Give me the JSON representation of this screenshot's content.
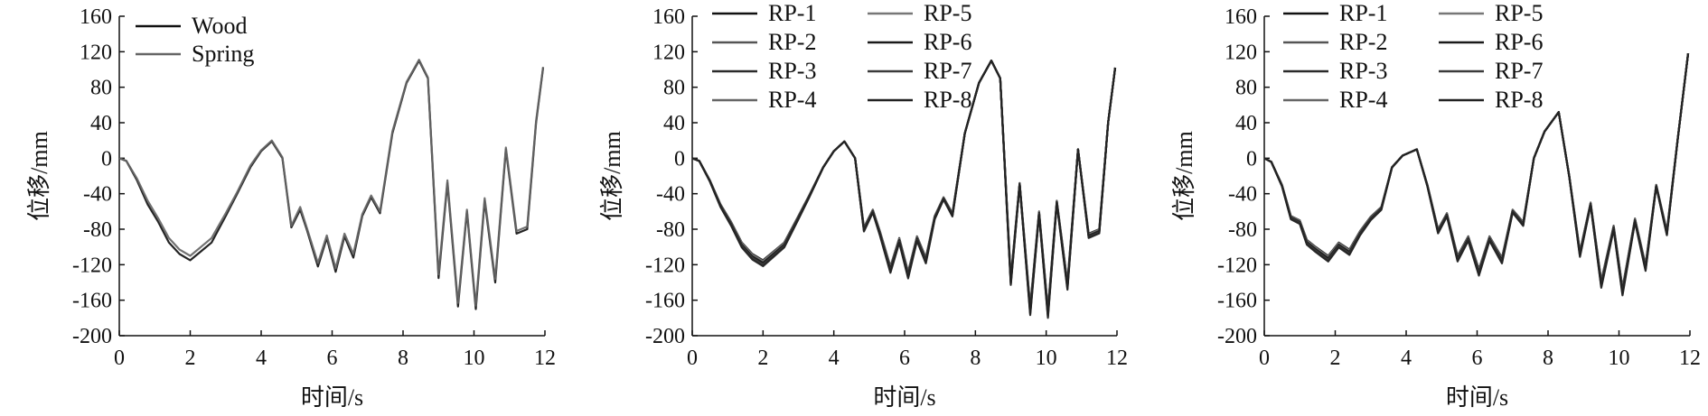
{
  "chart_data": [
    {
      "type": "line",
      "xlabel": "时间/s",
      "ylabel": "位移/mm",
      "xlim": [
        0,
        12
      ],
      "ylim": [
        -200,
        160
      ],
      "xticks": [
        0,
        2,
        4,
        6,
        8,
        10,
        12
      ],
      "yticks": [
        -200,
        -160,
        -120,
        -80,
        -40,
        0,
        40,
        80,
        120,
        160
      ],
      "grid": false,
      "legend": {
        "placement": "top-left",
        "columns": 1
      },
      "series": [
        {
          "name": "Wood",
          "color": "#111111",
          "x": [
            0,
            0.2,
            0.5,
            0.8,
            1.1,
            1.4,
            1.7,
            2.0,
            2.3,
            2.6,
            3.0,
            3.3,
            3.7,
            4.0,
            4.3,
            4.6,
            4.85,
            5.1,
            5.3,
            5.6,
            5.85,
            6.1,
            6.35,
            6.6,
            6.85,
            7.1,
            7.35,
            7.7,
            8.1,
            8.45,
            8.7,
            9.0,
            9.25,
            9.55,
            9.8,
            10.05,
            10.3,
            10.6,
            10.9,
            11.2,
            11.5,
            11.75,
            11.95
          ],
          "y": [
            0,
            -3,
            -25,
            -52,
            -72,
            -95,
            -108,
            -115,
            -105,
            -95,
            -65,
            -42,
            -10,
            8,
            19,
            0,
            -78,
            -58,
            -82,
            -122,
            -90,
            -128,
            -88,
            -112,
            -65,
            -44,
            -62,
            28,
            85,
            110,
            90,
            -135,
            -28,
            -167,
            -60,
            -170,
            -48,
            -140,
            10,
            -85,
            -80,
            40,
            102
          ]
        },
        {
          "name": "Spring",
          "color": "#666666",
          "x": [
            0,
            0.2,
            0.5,
            0.8,
            1.1,
            1.4,
            1.7,
            2.0,
            2.3,
            2.6,
            3.0,
            3.3,
            3.7,
            4.0,
            4.3,
            4.6,
            4.85,
            5.1,
            5.3,
            5.6,
            5.85,
            6.1,
            6.35,
            6.6,
            6.85,
            7.1,
            7.35,
            7.7,
            8.1,
            8.45,
            8.7,
            9.0,
            9.25,
            9.55,
            9.8,
            10.05,
            10.3,
            10.6,
            10.9,
            11.2,
            11.5,
            11.75,
            11.95
          ],
          "y": [
            0,
            -3,
            -23,
            -48,
            -68,
            -90,
            -103,
            -110,
            -100,
            -90,
            -62,
            -40,
            -8,
            9,
            20,
            1,
            -76,
            -55,
            -80,
            -118,
            -87,
            -124,
            -85,
            -108,
            -63,
            -42,
            -60,
            30,
            86,
            111,
            91,
            -131,
            -25,
            -163,
            -58,
            -166,
            -45,
            -136,
            12,
            -82,
            -77,
            42,
            103
          ]
        }
      ]
    },
    {
      "type": "line",
      "xlabel": "时间/s",
      "ylabel": "位移/mm",
      "xlim": [
        0,
        12
      ],
      "ylim": [
        -200,
        160
      ],
      "xticks": [
        0,
        2,
        4,
        6,
        8,
        10,
        12
      ],
      "yticks": [
        -200,
        -160,
        -120,
        -80,
        -40,
        0,
        40,
        80,
        120,
        160
      ],
      "grid": false,
      "legend": {
        "placement": "top-left",
        "columns": 2
      },
      "series": [
        {
          "name": "RP-1",
          "color": "#111111",
          "offset": 0
        },
        {
          "name": "RP-2",
          "color": "#555555",
          "offset": 2
        },
        {
          "name": "RP-3",
          "color": "#2a2a2a",
          "offset": 4
        },
        {
          "name": "RP-4",
          "color": "#666666",
          "offset": 6
        },
        {
          "name": "RP-5",
          "color": "#777777",
          "offset": 1
        },
        {
          "name": "RP-6",
          "color": "#1a1a1a",
          "offset": 3
        },
        {
          "name": "RP-7",
          "color": "#3a3a3a",
          "offset": 5
        },
        {
          "name": "RP-8",
          "color": "#222222",
          "offset": 7
        }
      ],
      "x": [
        0,
        0.2,
        0.5,
        0.8,
        1.1,
        1.4,
        1.7,
        2.0,
        2.3,
        2.6,
        3.0,
        3.3,
        3.7,
        4.0,
        4.3,
        4.6,
        4.85,
        5.1,
        5.3,
        5.6,
        5.85,
        6.1,
        6.35,
        6.6,
        6.85,
        7.1,
        7.35,
        7.7,
        8.1,
        8.45,
        8.7,
        9.0,
        9.25,
        9.55,
        9.8,
        10.05,
        10.3,
        10.6,
        10.9,
        11.2,
        11.5,
        11.75,
        11.95
      ],
      "base_y": [
        0,
        -3,
        -25,
        -52,
        -72,
        -95,
        -108,
        -115,
        -105,
        -95,
        -65,
        -42,
        -10,
        8,
        19,
        0,
        -78,
        -58,
        -82,
        -122,
        -90,
        -128,
        -88,
        -112,
        -65,
        -44,
        -62,
        28,
        85,
        110,
        90,
        -135,
        -28,
        -167,
        -60,
        -170,
        -48,
        -140,
        10,
        -85,
        -80,
        40,
        102
      ]
    },
    {
      "type": "line",
      "xlabel": "时间/s",
      "ylabel": "位移/mm",
      "xlim": [
        0,
        12
      ],
      "ylim": [
        -200,
        160
      ],
      "xticks": [
        0,
        2,
        4,
        6,
        8,
        10,
        12
      ],
      "yticks": [
        -200,
        -160,
        -120,
        -80,
        -40,
        0,
        40,
        80,
        120,
        160
      ],
      "grid": false,
      "legend": {
        "placement": "top-left",
        "columns": 2
      },
      "series": [
        {
          "name": "RP-1",
          "color": "#111111",
          "offset": 0
        },
        {
          "name": "RP-2",
          "color": "#555555",
          "offset": 2
        },
        {
          "name": "RP-3",
          "color": "#2a2a2a",
          "offset": 4
        },
        {
          "name": "RP-4",
          "color": "#666666",
          "offset": 6
        },
        {
          "name": "RP-5",
          "color": "#777777",
          "offset": 1
        },
        {
          "name": "RP-6",
          "color": "#1a1a1a",
          "offset": 3
        },
        {
          "name": "RP-7",
          "color": "#3a3a3a",
          "offset": 5
        },
        {
          "name": "RP-8",
          "color": "#222222",
          "offset": 7
        }
      ],
      "x": [
        0,
        0.2,
        0.5,
        0.75,
        1.0,
        1.2,
        1.45,
        1.8,
        2.1,
        2.4,
        2.7,
        3.0,
        3.3,
        3.6,
        3.9,
        4.3,
        4.6,
        4.9,
        5.15,
        5.45,
        5.75,
        6.05,
        6.35,
        6.7,
        7.0,
        7.3,
        7.6,
        7.9,
        8.3,
        8.6,
        8.9,
        9.2,
        9.5,
        9.85,
        10.1,
        10.45,
        10.75,
        11.05,
        11.35,
        11.65,
        11.95
      ],
      "base_y": [
        0,
        -4,
        -30,
        -65,
        -70,
        -92,
        -100,
        -110,
        -95,
        -103,
        -82,
        -66,
        -55,
        -10,
        3,
        10,
        -30,
        -80,
        -62,
        -110,
        -88,
        -125,
        -88,
        -112,
        -58,
        -72,
        0,
        30,
        52,
        -20,
        -105,
        -50,
        -138,
        -76,
        -146,
        -68,
        -120,
        -30,
        -82,
        20,
        118
      ]
    }
  ]
}
